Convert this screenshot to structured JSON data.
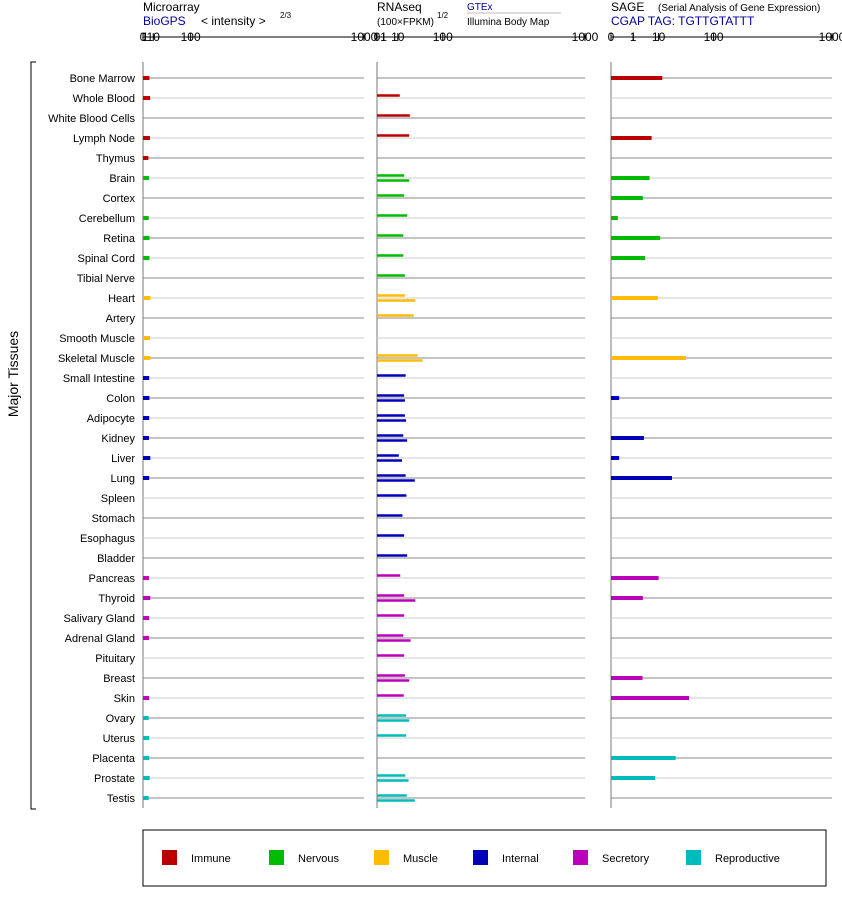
{
  "header": {
    "microarray": {
      "title": "Microarray",
      "source": "BioGPS",
      "scale": "< intensity >",
      "exponent": "2/3",
      "ticks": [
        "0",
        "1",
        "10",
        "100",
        "1000"
      ]
    },
    "rnaseq": {
      "title": "RNAseq",
      "scale": "(100×FPKM)",
      "exponent": "1/2",
      "source_top": "GTEx",
      "source_bottom": "Illumina Body Map",
      "ticks": [
        "0",
        "1",
        "10",
        "100",
        "1000"
      ]
    },
    "sage": {
      "title": "SAGE",
      "subtitle": "(Serial Analysis of Gene Expression)",
      "tag_label": "CGAP TAG: TGTTGTATTT",
      "ticks": [
        "0",
        "1",
        "10",
        "100",
        "1000"
      ]
    }
  },
  "y_axis_label": "Major Tissues",
  "colors": {
    "Immune": "#bb0000",
    "Nervous": "#00bb00",
    "Muscle": "#ffbb00",
    "Internal": "#0000bb",
    "Secretory": "#bb00bb",
    "Reproductive": "#00bbbb"
  },
  "legend": [
    "Immune",
    "Nervous",
    "Muscle",
    "Internal",
    "Secretory",
    "Reproductive"
  ],
  "chart_data": {
    "type": "bar",
    "orientation": "horizontal",
    "x_scale": "power-root",
    "xlim": [
      0,
      1000
    ],
    "categories": [
      "Bone Marrow",
      "Whole Blood",
      "White Blood Cells",
      "Lymph Node",
      "Thymus",
      "Brain",
      "Cortex",
      "Cerebellum",
      "Retina",
      "Spinal Cord",
      "Tibial Nerve",
      "Heart",
      "Artery",
      "Smooth Muscle",
      "Skeletal Muscle",
      "Small Intestine",
      "Colon",
      "Adipocyte",
      "Kidney",
      "Liver",
      "Lung",
      "Spleen",
      "Stomach",
      "Esophagus",
      "Bladder",
      "Pancreas",
      "Thyroid",
      "Salivary Gland",
      "Adrenal Gland",
      "Pituitary",
      "Breast",
      "Skin",
      "Ovary",
      "Uterus",
      "Placenta",
      "Prostate",
      "Testis"
    ],
    "groups": [
      "Immune",
      "Immune",
      "Immune",
      "Immune",
      "Immune",
      "Nervous",
      "Nervous",
      "Nervous",
      "Nervous",
      "Nervous",
      "Nervous",
      "Muscle",
      "Muscle",
      "Muscle",
      "Muscle",
      "Internal",
      "Internal",
      "Internal",
      "Internal",
      "Internal",
      "Internal",
      "Internal",
      "Internal",
      "Internal",
      "Internal",
      "Secretory",
      "Secretory",
      "Secretory",
      "Secretory",
      "Secretory",
      "Secretory",
      "Secretory",
      "Reproductive",
      "Reproductive",
      "Reproductive",
      "Reproductive",
      "Reproductive"
    ],
    "microarray": [
      5.0,
      5.8,
      null,
      5.6,
      3.8,
      4.4,
      null,
      4.1,
      5.0,
      5.0,
      null,
      6.2,
      null,
      5.6,
      6.0,
      4.7,
      5.0,
      4.7,
      4.4,
      6.0,
      4.7,
      null,
      null,
      null,
      null,
      4.4,
      6.0,
      4.7,
      4.4,
      null,
      null,
      4.7,
      4.1,
      4.7,
      4.7,
      5.3,
      4.1
    ],
    "rnaseq_gtex": [
      null,
      12.0,
      25.0,
      24.0,
      null,
      17.0,
      17.0,
      21.0,
      16.0,
      16.0,
      18.0,
      18.0,
      31.0,
      null,
      38.0,
      19.0,
      17.0,
      18.0,
      16.0,
      11.0,
      19.0,
      20.0,
      15.0,
      17.0,
      21.0,
      12.5,
      17.0,
      17.0,
      16.0,
      17.0,
      18.0,
      16.5,
      19.5,
      19.5,
      null,
      18.5,
      20.5
    ],
    "rnaseq_ibm": [
      null,
      null,
      null,
      null,
      null,
      24.0,
      null,
      null,
      null,
      null,
      null,
      34.0,
      null,
      null,
      48.0,
      null,
      18.0,
      19.5,
      21.0,
      14.5,
      33.0,
      null,
      null,
      null,
      null,
      null,
      34.0,
      null,
      26.0,
      null,
      24.0,
      null,
      24.0,
      null,
      null,
      23.0,
      33.0
    ],
    "sage": [
      12.5,
      null,
      null,
      6.2,
      null,
      5.3,
      3.0,
      0.03,
      11.0,
      3.7,
      null,
      9.5,
      null,
      null,
      39.0,
      null,
      0.05,
      null,
      3.3,
      0.05,
      21.0,
      null,
      null,
      null,
      null,
      10.0,
      3.0,
      null,
      null,
      null,
      2.9,
      44.0,
      null,
      null,
      25.0,
      8.0,
      null
    ]
  }
}
